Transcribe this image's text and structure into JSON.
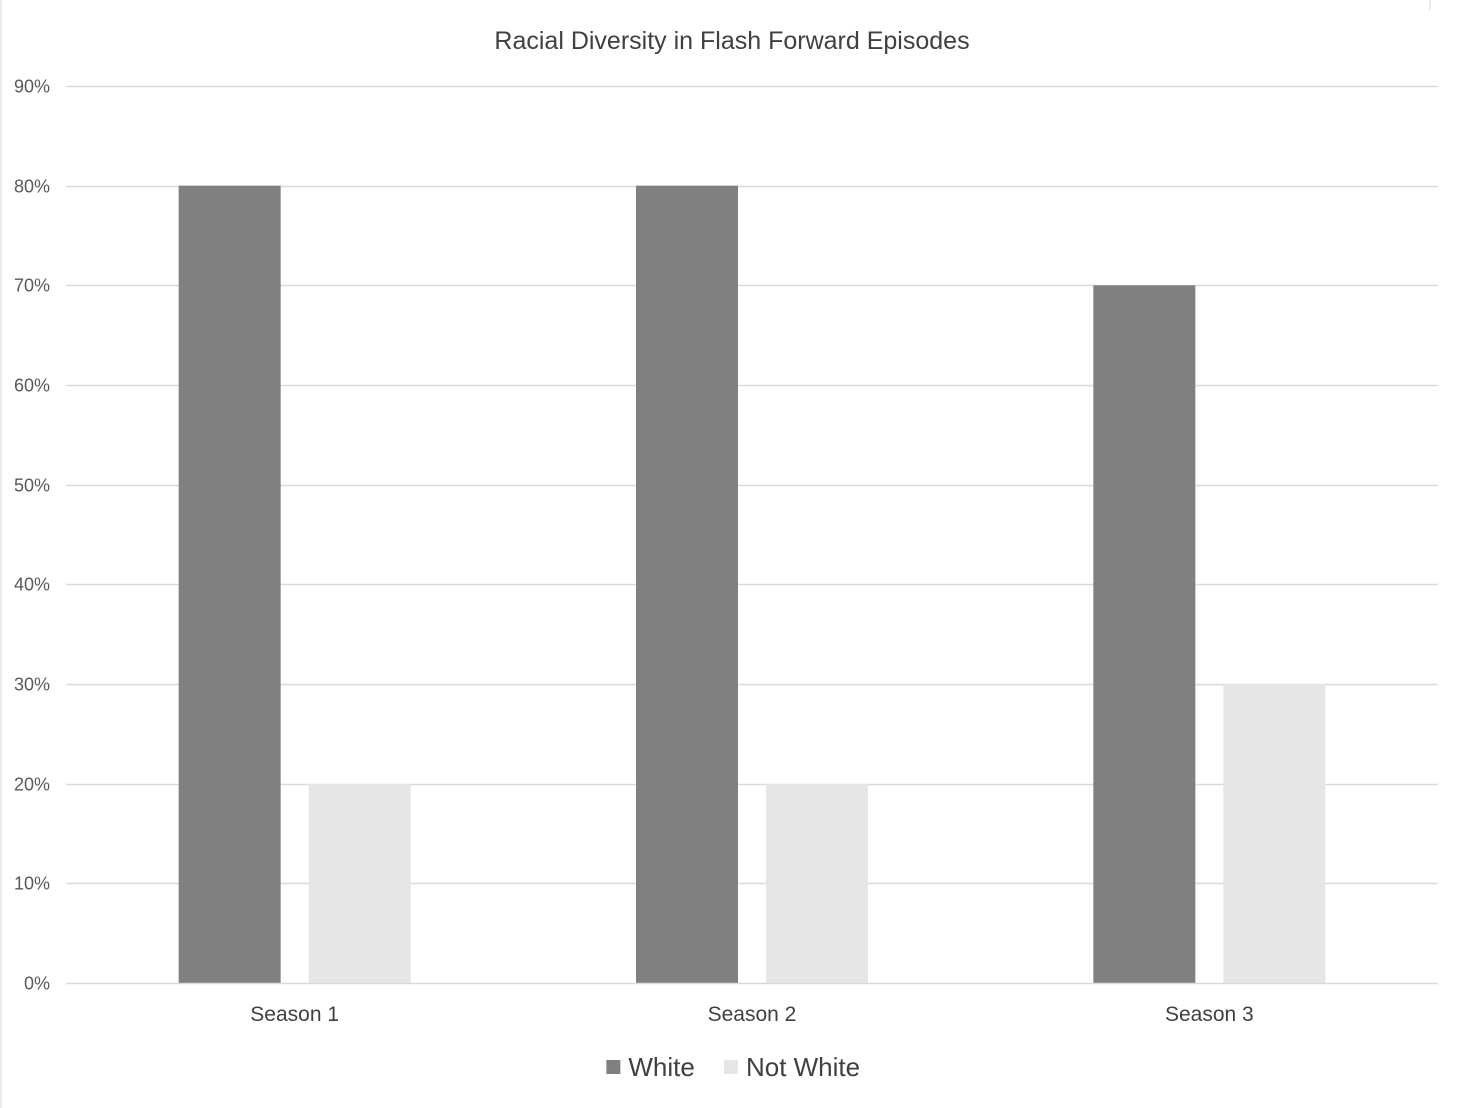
{
  "chart_data": {
    "type": "bar",
    "title": "Racial Diversity in Flash Forward Episodes",
    "xlabel": "",
    "ylabel": "",
    "categories": [
      "Season 1",
      "Season 2",
      "Season 3"
    ],
    "series": [
      {
        "name": "White",
        "values": [
          0.8,
          0.8,
          0.7
        ],
        "color": "#808080"
      },
      {
        "name": "Not White",
        "values": [
          0.2,
          0.2,
          0.3
        ],
        "color": "#e6e6e6"
      }
    ],
    "ylim": [
      0,
      0.9
    ],
    "yticks": [
      0,
      0.1,
      0.2,
      0.3,
      0.4,
      0.5,
      0.6,
      0.7,
      0.8,
      0.9
    ],
    "ytick_labels": [
      "0%",
      "10%",
      "20%",
      "30%",
      "40%",
      "50%",
      "60%",
      "70%",
      "80%",
      "90%"
    ],
    "grid": true,
    "legend": "bottom-center",
    "colors": {
      "gridline": "#d9d9d9",
      "axis_text": "#595959",
      "title_text": "#404040"
    }
  }
}
